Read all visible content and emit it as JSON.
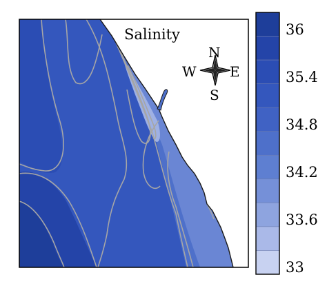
{
  "map": {
    "title": "Salinity"
  },
  "compass": {
    "north": "N",
    "south": "S",
    "east": "E",
    "west": "W"
  },
  "colorbar": {
    "ticks": [
      "36",
      "35.4",
      "34.8",
      "34.2",
      "33.6",
      "33"
    ],
    "bands": [
      {
        "min": 36.0,
        "max": 36.3,
        "color": "#1e3e9a"
      },
      {
        "min": 35.7,
        "max": 36.0,
        "color": "#2444a8"
      },
      {
        "min": 35.4,
        "max": 35.7,
        "color": "#2b4db4"
      },
      {
        "min": 35.1,
        "max": 35.4,
        "color": "#3457bd"
      },
      {
        "min": 34.8,
        "max": 35.1,
        "color": "#4062c4"
      },
      {
        "min": 34.5,
        "max": 34.8,
        "color": "#4e70ca"
      },
      {
        "min": 34.2,
        "max": 34.5,
        "color": "#5e7fd1"
      },
      {
        "min": 33.9,
        "max": 34.2,
        "color": "#7590d8"
      },
      {
        "min": 33.6,
        "max": 33.9,
        "color": "#8ea4df"
      },
      {
        "min": 33.3,
        "max": 33.6,
        "color": "#aab9e8"
      },
      {
        "min": 33.0,
        "max": 33.3,
        "color": "#c8d2f1"
      }
    ]
  },
  "colors": {
    "land": "#ffffff",
    "coastline": "#1a1a1a",
    "contour_line": "#a6a6a6",
    "frame": "#000000"
  }
}
